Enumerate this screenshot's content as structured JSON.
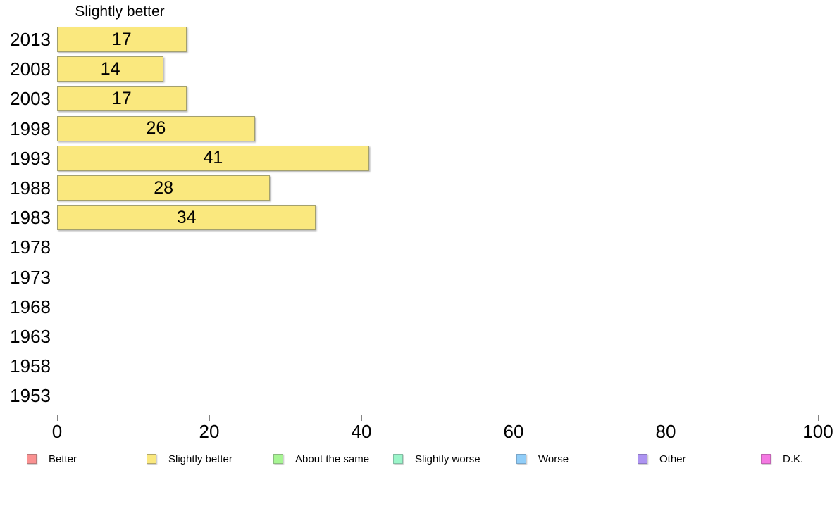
{
  "page": {
    "background": "#ffffff"
  },
  "chart_data": {
    "type": "bar",
    "orientation": "horizontal",
    "title": "Slightly better",
    "categories": [
      "2013",
      "2008",
      "2003",
      "1998",
      "1993",
      "1988",
      "1983",
      "1978",
      "1973",
      "1968",
      "1963",
      "1958",
      "1953"
    ],
    "values": [
      17,
      14,
      17,
      26,
      41,
      28,
      34,
      null,
      null,
      null,
      null,
      null,
      null
    ],
    "xlabel": "",
    "ylabel": "",
    "xlim": [
      0,
      100
    ],
    "x_ticks": [
      0,
      20,
      40,
      60,
      80,
      100
    ],
    "grid": false,
    "bar_fill": "#fae87e",
    "bar_border": "#a3a06e",
    "axis_color": "#848484",
    "text_color": "#000000",
    "legend_position": "bottom",
    "legend": [
      {
        "label": "Better",
        "fill": "#fa9191",
        "border": "#b97a7a"
      },
      {
        "label": "Slightly better",
        "fill": "#fae87e",
        "border": "#b3a86a"
      },
      {
        "label": "About the same",
        "fill": "#a7f593",
        "border": "#8cba80"
      },
      {
        "label": "Slightly worse",
        "fill": "#9bf5c9",
        "border": "#82bda4"
      },
      {
        "label": "Worse",
        "fill": "#90cdf8",
        "border": "#79a6c9"
      },
      {
        "label": "Other",
        "fill": "#ad93f1",
        "border": "#8c7ac2"
      },
      {
        "label": "D.K.",
        "fill": "#f478e2",
        "border": "#c164b3"
      }
    ]
  }
}
